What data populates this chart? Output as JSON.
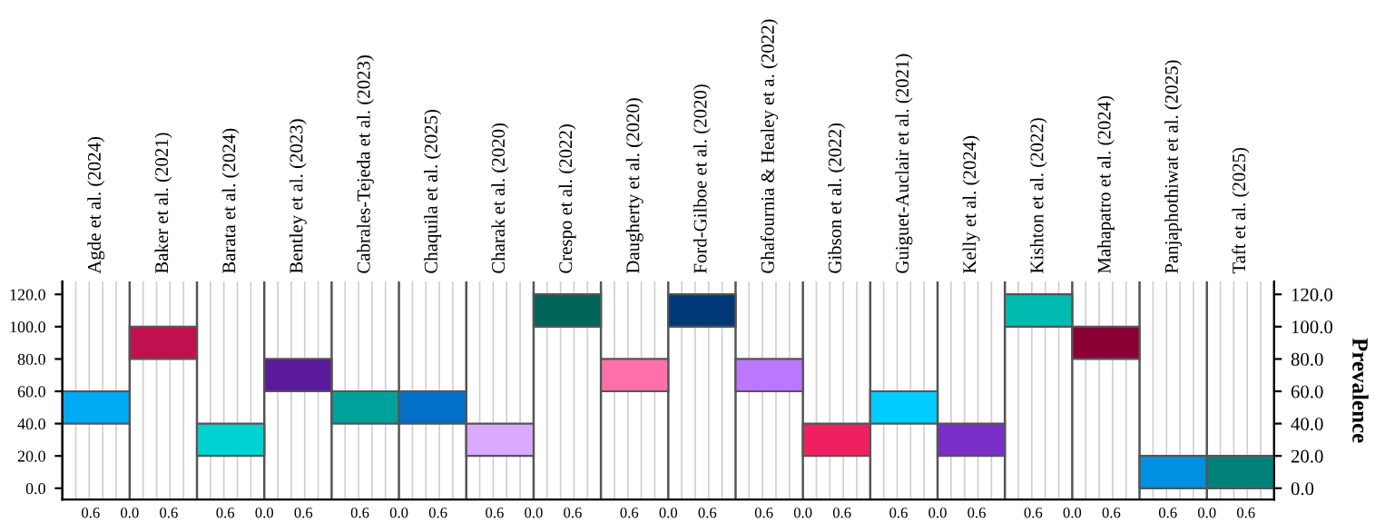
{
  "chart_data": {
    "type": "bar",
    "categories": [
      "Agde et al. (2024)",
      "Baker et al. (2021)",
      "Barata et al. (2024)",
      "Bentley et al. (2023)",
      "Cabrales-Tejeda et al. (2023)",
      "Chaquila et al. (2025)",
      "Charak et al. (2020)",
      "Crespo et al. (2022)",
      "Daugherty et al. (2020)",
      "Ford-Gilboe et al. (2020)",
      "Ghafournia & Healey et a. (2022)",
      "Gibson et al. (2022)",
      "Guiguet-Auclair et al. (2021)",
      "Kelly et al. (2024)",
      "Kishton et al. (2022)",
      "Mahapatro et al. (2024)",
      "Panjaphothiwat et al. (2025)",
      "Taft et al. (2025)"
    ],
    "base": [
      40,
      80,
      20,
      60,
      40,
      40,
      20,
      100,
      60,
      100,
      60,
      20,
      40,
      20,
      100,
      80,
      0,
      0
    ],
    "values": [
      20,
      20,
      20,
      20,
      20,
      20,
      20,
      20,
      20,
      20,
      20,
      20,
      20,
      20,
      20,
      20,
      20,
      20
    ],
    "colors": [
      "#00a9f4",
      "#c0104f",
      "#00d2d2",
      "#5b1a9a",
      "#00a19a",
      "#0070c8",
      "#d9aaff",
      "#006459",
      "#ff70a8",
      "#003878",
      "#bb77ff",
      "#f02060",
      "#00ccff",
      "#7a2ec8",
      "#00bcb0",
      "#8a0034",
      "#0090e0",
      "#008078"
    ],
    "ylim": [
      -7,
      128
    ],
    "yticks": [
      {
        "value": 0,
        "label": "0.0"
      },
      {
        "value": 20,
        "label": "20.0"
      },
      {
        "value": 40,
        "label": "40.0"
      },
      {
        "value": 60,
        "label": "60.0"
      },
      {
        "value": 80,
        "label": "80.0"
      },
      {
        "value": 100,
        "label": "100.0"
      },
      {
        "value": 120,
        "label": "120.0"
      }
    ],
    "y2lim": [
      -7,
      128
    ],
    "y2ticks": [
      {
        "value": 0,
        "label": "0.0"
      },
      {
        "value": 20,
        "label": "20.0"
      },
      {
        "value": 40,
        "label": "40.0"
      },
      {
        "value": 60,
        "label": "60.0"
      },
      {
        "value": 80,
        "label": "80.0"
      },
      {
        "value": 100,
        "label": "100.0"
      },
      {
        "value": 120,
        "label": "120.0"
      }
    ],
    "y2label": "Prevalence",
    "grid": "x",
    "annotations": [
      "0.6",
      "0.0",
      "0.6",
      "0.6",
      "0.0",
      "0.6",
      "0.6",
      "0.0",
      "0.6",
      "0.6",
      "0.0",
      "0.6",
      "0.6",
      "0.0",
      "0.6",
      "0.6",
      "0.0",
      "0.6",
      "0.6",
      "0.0",
      "0.6",
      "0.6",
      "0.0",
      "0.6",
      "0.6",
      "0.0",
      "0.6"
    ]
  }
}
